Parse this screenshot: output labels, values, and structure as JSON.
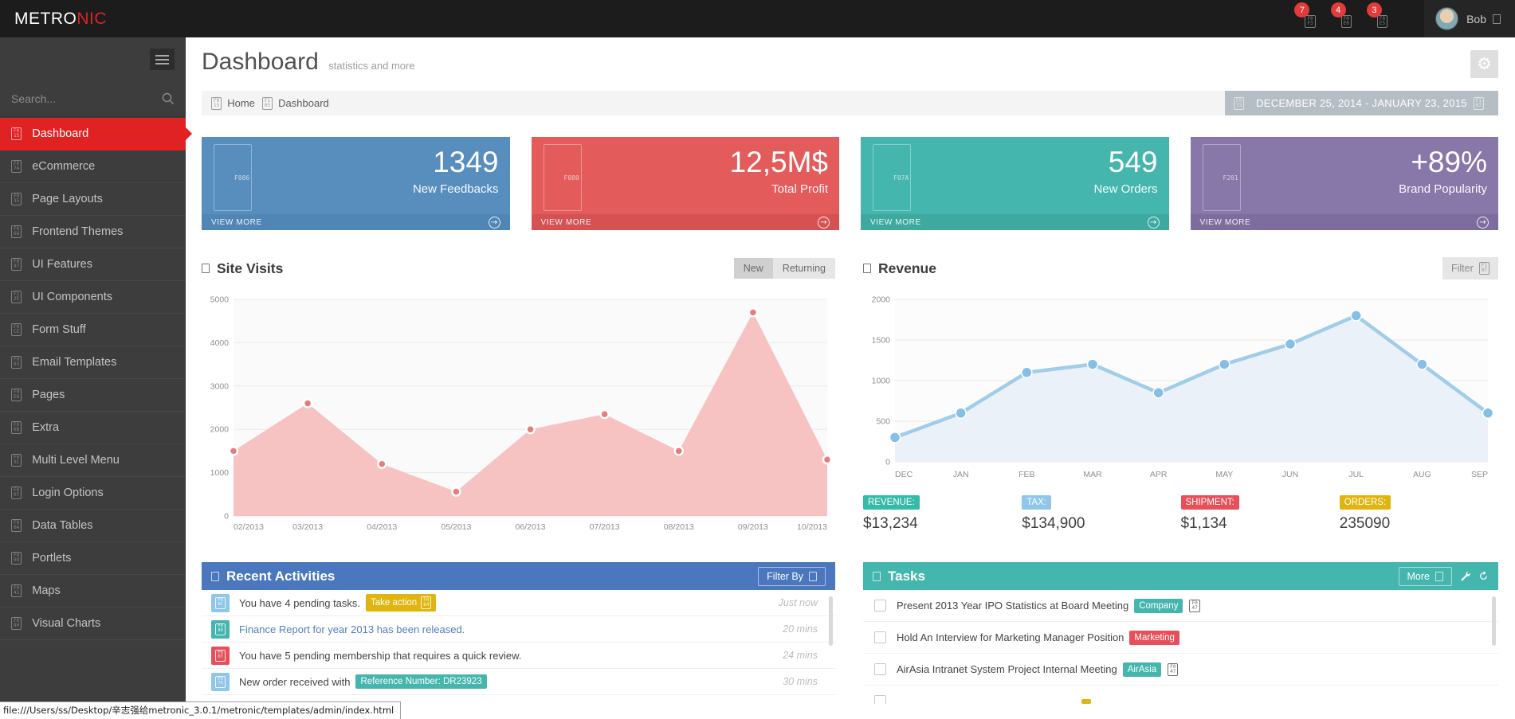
{
  "topbar": {
    "logo_metro": "METRO",
    "logo_nic": "NIC",
    "notifications": [
      {
        "count": "7",
        "icon": "F0F3"
      },
      {
        "count": "4",
        "icon": "F0E0"
      },
      {
        "count": "3",
        "icon": "F0E5"
      }
    ],
    "user": {
      "name": "Bob"
    },
    "colors": {
      "bar": "#1c1c1c",
      "badge": "#e23b3b",
      "logo_accent": "#e02222"
    }
  },
  "sidebar": {
    "search_placeholder": "Search...",
    "active_color": "#e02222",
    "items": [
      {
        "label": "Dashboard",
        "icon": "F015"
      },
      {
        "label": "eCommerce",
        "icon": "F07A"
      },
      {
        "label": "Page Layouts",
        "icon": "F035"
      },
      {
        "label": "Frontend Themes",
        "icon": "F068"
      },
      {
        "label": "UI Features",
        "icon": "F097"
      },
      {
        "label": "UI Components",
        "icon": "F12E"
      },
      {
        "label": "Form Stuff",
        "icon": "F0CE"
      },
      {
        "label": "Email Templates",
        "icon": "F003"
      },
      {
        "label": "Pages",
        "icon": "F0E8"
      },
      {
        "label": "Extra",
        "icon": "F06B"
      },
      {
        "label": "Multi Level Menu",
        "icon": "F03C"
      },
      {
        "label": "Login Options",
        "icon": "F007"
      },
      {
        "label": "Data Tables",
        "icon": "F00A"
      },
      {
        "label": "Portlets",
        "icon": "F009"
      },
      {
        "label": "Maps",
        "icon": "F041"
      },
      {
        "label": "Visual Charts",
        "icon": "F080"
      }
    ]
  },
  "header": {
    "title": "Dashboard",
    "subtitle": "statistics and more",
    "breadcrumb": {
      "home_icon": "F015",
      "home": "Home",
      "sep_icon": "F105",
      "page": "Dashboard"
    },
    "daterange": {
      "cal_icon": "F073",
      "label": "DECEMBER 25, 2014 - JANUARY 23, 2015",
      "caret_icon": "F107"
    }
  },
  "stats": [
    {
      "value": "1349",
      "label": "New Feedbacks",
      "more": "VIEW MORE",
      "icon": "F086",
      "color": "#578ebe",
      "footer": "#4f86b5"
    },
    {
      "value": "12,5M$",
      "label": "Total Profit",
      "more": "VIEW MORE",
      "icon": "F080",
      "color": "#e35b5a",
      "footer": "#d65252"
    },
    {
      "value": "549",
      "label": "New Orders",
      "more": "VIEW MORE",
      "icon": "F07A",
      "color": "#44b6ae",
      "footer": "#3da99f"
    },
    {
      "value": "+89%",
      "label": "Brand Popularity",
      "more": "VIEW MORE",
      "icon": "F201",
      "color": "#8877a9",
      "footer": "#7d6d9e"
    }
  ],
  "site_visits_panel": {
    "title": "Site Visits",
    "toggle_new": "New",
    "toggle_returning": "Returning"
  },
  "revenue_panel": {
    "title": "Revenue",
    "filter_label": "Filter",
    "filter_icon": "F107",
    "stats": [
      {
        "label": "REVENUE:",
        "value": "$13,234",
        "color": "#36bba6"
      },
      {
        "label": "TAX:",
        "value": "$134,900",
        "color": "#8ec7ea"
      },
      {
        "label": "SHIPMENT:",
        "value": "$1,134",
        "color": "#e7505a"
      },
      {
        "label": "ORDERS:",
        "value": "235090",
        "color": "#e0b50f"
      }
    ]
  },
  "chart_data": [
    {
      "id": "site-visits-chart",
      "type": "area",
      "title": "Site Visits",
      "categories": [
        "02/2013",
        "03/2013",
        "04/2013",
        "05/2013",
        "06/2013",
        "07/2013",
        "08/2013",
        "09/2013",
        "10/2013"
      ],
      "values": [
        1500,
        2600,
        1200,
        560,
        2000,
        2350,
        1500,
        4700,
        1300
      ],
      "ylim": [
        0,
        5000
      ],
      "yticks": [
        0,
        1000,
        2000,
        3000,
        4000,
        5000
      ],
      "grid": true,
      "legend": false,
      "colors": {
        "fill": "#f6c2c2",
        "marker": "#e87b7b",
        "bg": "#fafafa"
      }
    },
    {
      "id": "revenue-chart",
      "type": "line",
      "title": "Revenue",
      "categories": [
        "DEC",
        "JAN",
        "FEB",
        "MAR",
        "APR",
        "MAY",
        "JUN",
        "JUL",
        "AUG",
        "SEP"
      ],
      "values": [
        300,
        600,
        1100,
        1200,
        850,
        1200,
        1450,
        1800,
        1200,
        600
      ],
      "ylim": [
        0,
        2000
      ],
      "yticks": [
        0,
        500,
        1000,
        1500,
        2000
      ],
      "grid": true,
      "legend": false,
      "colors": {
        "fill": "#ebf1f9",
        "line": "#a0cdea",
        "marker": "#85bfe7",
        "bg": "#fcfcfc"
      }
    }
  ],
  "activities": {
    "title": "Recent Activities",
    "filter_label": "Filter By",
    "header_color": "#4b77be",
    "items": [
      {
        "icon": "F00C",
        "icon_color": "#8ec7ea",
        "text": "You have 4 pending tasks.",
        "badge": "Take action",
        "badge_icon": "F064",
        "badge_color": "#e0b50f",
        "time": "Just now"
      },
      {
        "icon": "F080",
        "icon_color": "#44b6ae",
        "text": "Finance Report for year 2013 has been released.",
        "time": "20 mins"
      },
      {
        "icon": "F007",
        "icon_color": "#e7505a",
        "text": "You have 5 pending membership that requires a quick review.",
        "time": "24 mins"
      },
      {
        "icon": "F07A",
        "icon_color": "#8ec7ea",
        "text": "New order received with",
        "badge": "Reference Number: DR23923",
        "badge_color": "#44b6ae",
        "time": "30 mins"
      }
    ]
  },
  "tasks": {
    "title": "Tasks",
    "more_label": "More",
    "header_color": "#44b6ae",
    "items": [
      {
        "text": "Present 2013 Year IPO Statistics at Board Meeting",
        "badge": "Company",
        "badge_color": "#44b6ae",
        "handle_icon": "F047"
      },
      {
        "text": "Hold An Interview for Marketing Manager Position",
        "badge": "Marketing",
        "badge_color": "#e7505a"
      },
      {
        "text": "AirAsia Intranet System Project Internal Meeting",
        "badge": "AirAsia",
        "badge_color": "#44b6ae",
        "handle_icon": "F047"
      },
      {
        "text": "",
        "badge": "",
        "badge_color": "#e0b50f"
      }
    ]
  },
  "statusbar": {
    "url": "file:///Users/ss/Desktop/辛志强给metronic_3.0.1/metronic/templates/admin/index.html"
  }
}
